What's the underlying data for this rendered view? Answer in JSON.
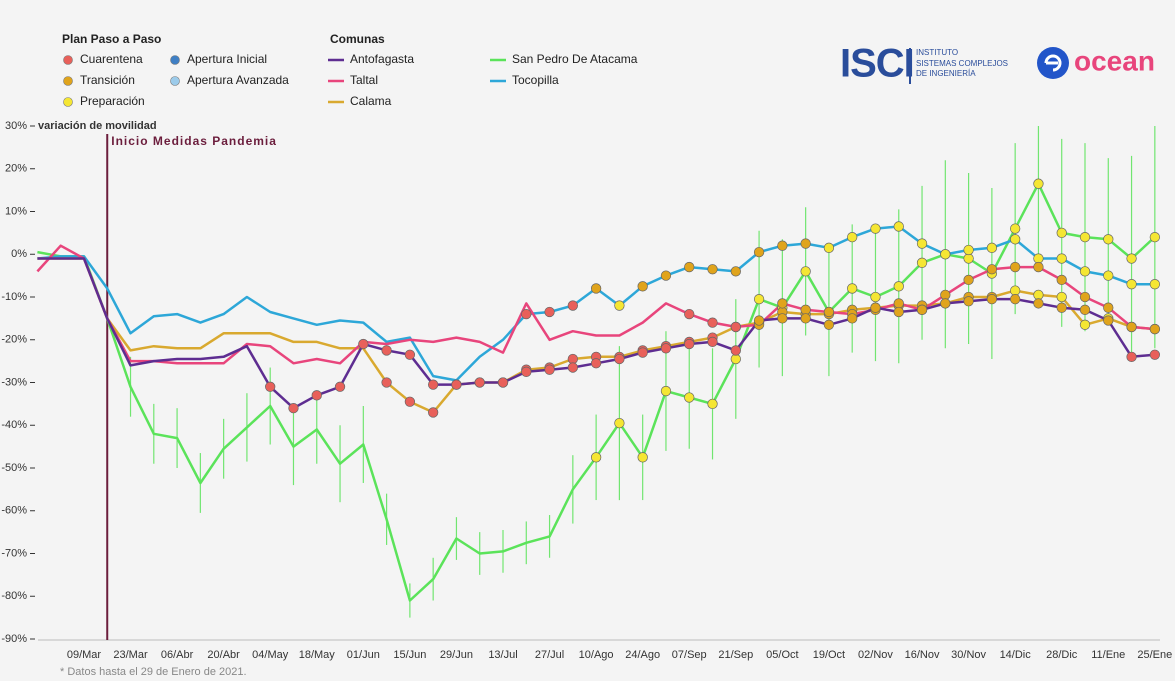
{
  "chart_data": {
    "type": "line",
    "y_label": "variación de movilidad",
    "event_label": "Inicio Medidas Pandemia",
    "phase_legend_title": "Plan Paso a Paso",
    "series_legend_title": "Comunas",
    "phases": [
      {
        "name": "Cuarentena",
        "color": "#e8605a"
      },
      {
        "name": "Transición",
        "color": "#e0a41c"
      },
      {
        "name": "Preparación",
        "color": "#f5e633"
      },
      {
        "name": "Apertura Inicial",
        "color": "#3f7fc4"
      },
      {
        "name": "Apertura Avanzada",
        "color": "#9ccbea"
      }
    ],
    "categories": [
      null,
      null,
      "09/Mar",
      null,
      "23/Mar",
      null,
      "06/Abr",
      null,
      "20/Abr",
      null,
      "04/May",
      null,
      "18/May",
      null,
      "01/Jun",
      null,
      "15/Jun",
      null,
      "29/Jun",
      null,
      "13/Jul",
      null,
      "27/Jul",
      null,
      "10/Ago",
      null,
      "24/Ago",
      null,
      "07/Sep",
      null,
      "21/Sep",
      null,
      "05/Oct",
      null,
      "19/Oct",
      null,
      "02/Nov",
      null,
      "16/Nov",
      null,
      "30/Nov",
      null,
      "14/Dic",
      null,
      "28/Dic",
      null,
      "11/Ene",
      null,
      "25/Ene"
    ],
    "series": [
      {
        "name": "Antofagasta",
        "color": "#5e2d91",
        "values": [
          -1,
          -1,
          -1,
          -15,
          -26,
          -25,
          -24.5,
          -24.5,
          -24,
          -21.5,
          -31,
          -36,
          -33,
          -31,
          -21,
          -22.5,
          -23.5,
          -30.5,
          -30.5,
          -30,
          -30,
          -27.5,
          -27,
          -26.5,
          -25.5,
          -24.5,
          -23,
          -22,
          -21,
          -20.5,
          -22.5,
          -15.5,
          -15,
          -15,
          -16.5,
          -15,
          -12.5,
          -13.5,
          -13,
          -11.5,
          -11,
          -10.5,
          -10.5,
          -11.5,
          -12.5,
          -13,
          -15.5,
          -24,
          -23.5
        ],
        "phases": [
          null,
          null,
          null,
          null,
          null,
          null,
          null,
          null,
          null,
          null,
          0,
          0,
          0,
          0,
          0,
          0,
          0,
          0,
          0,
          0,
          0,
          0,
          0,
          0,
          0,
          0,
          0,
          0,
          0,
          0,
          0,
          1,
          1,
          1,
          1,
          1,
          1,
          1,
          1,
          1,
          1,
          1,
          1,
          1,
          1,
          1,
          1,
          0,
          0
        ]
      },
      {
        "name": "Taltal",
        "color": "#e8457c",
        "values": [
          -4,
          2,
          -1,
          -15,
          -25,
          -25,
          -25.5,
          -25.5,
          -25.5,
          -21,
          -21.5,
          -25.5,
          -24.5,
          -25.5,
          -20.5,
          -21,
          -20,
          -20.5,
          -19.5,
          -20.5,
          -23,
          -11.5,
          -20,
          -18,
          -19,
          -19,
          -16,
          -11.5,
          -14,
          -16,
          -17,
          -16.5,
          -11.5,
          -13,
          -13.5,
          -14,
          -13,
          -11.5,
          -13,
          -9.5,
          -6,
          -3.5,
          -3,
          -3,
          -6,
          -10,
          -12.5,
          -17,
          -17.5
        ],
        "phases": [
          null,
          null,
          null,
          null,
          null,
          null,
          null,
          null,
          null,
          null,
          null,
          null,
          null,
          null,
          null,
          null,
          null,
          null,
          null,
          null,
          null,
          null,
          null,
          null,
          null,
          null,
          null,
          null,
          0,
          0,
          0,
          1,
          1,
          1,
          1,
          1,
          1,
          1,
          1,
          1,
          1,
          1,
          1,
          1,
          1,
          1,
          1,
          1,
          1
        ]
      },
      {
        "name": "Calama",
        "color": "#d9a92f",
        "values": [
          -1,
          -1,
          -1,
          -15,
          -22.5,
          -21.5,
          -22,
          -22,
          -18.5,
          -18.5,
          -18.5,
          -20.5,
          -20.5,
          -22,
          -22,
          -30,
          -34.5,
          -37,
          -30.5,
          -30,
          -30,
          -27,
          -26.5,
          -24.5,
          -24,
          -24,
          -22.5,
          -21.5,
          -20.5,
          -19.5,
          -17,
          -16,
          -13.5,
          -14,
          -14,
          -13,
          -12.5,
          -12,
          -12,
          -11.5,
          -10,
          -10,
          -8.5,
          -9.5,
          -10,
          -16.5,
          -15,
          -17,
          -17.5
        ],
        "phases": [
          null,
          null,
          null,
          null,
          null,
          null,
          null,
          null,
          null,
          null,
          null,
          null,
          null,
          null,
          null,
          0,
          0,
          0,
          0,
          0,
          0,
          0,
          0,
          0,
          0,
          0,
          0,
          0,
          0,
          0,
          1,
          1,
          1,
          1,
          1,
          1,
          1,
          1,
          1,
          1,
          1,
          1,
          2,
          2,
          2,
          2,
          2,
          2,
          2
        ]
      },
      {
        "name": "San Pedro De Atacama",
        "color": "#5be35a",
        "values": [
          0.5,
          -0.5,
          -0.5,
          -15,
          -31,
          -42,
          -43,
          -53.5,
          -45.5,
          -40.5,
          -35.5,
          -45,
          -41,
          -49,
          -44.5,
          -62,
          -81,
          -76,
          -66.5,
          -70,
          -69.5,
          -67.5,
          -66,
          -55,
          -47.5,
          -39.5,
          -47.5,
          -32,
          -33.5,
          -35,
          -24.5,
          -10.5,
          -12.5,
          -4,
          -13.5,
          -8,
          -10,
          -7.5,
          -2,
          0,
          -1,
          -4.5,
          6,
          16.5,
          5,
          4,
          3.5,
          -1,
          4
        ],
        "errors": [
          0,
          0,
          0,
          0,
          7,
          7,
          7,
          7,
          7,
          8,
          9,
          9,
          8,
          9,
          9,
          6,
          4,
          5,
          5,
          5,
          5,
          5,
          5,
          8,
          10,
          18,
          10,
          14,
          12,
          13,
          14,
          16,
          16,
          15,
          15,
          15,
          15,
          18,
          18,
          22,
          20,
          20,
          20,
          18,
          22,
          22,
          19,
          24,
          26
        ],
        "phases": [
          null,
          null,
          null,
          null,
          null,
          null,
          null,
          null,
          null,
          null,
          null,
          null,
          null,
          null,
          null,
          null,
          null,
          null,
          null,
          null,
          null,
          null,
          null,
          null,
          2,
          2,
          2,
          2,
          2,
          2,
          2,
          2,
          2,
          2,
          2,
          2,
          2,
          2,
          2,
          2,
          2,
          2,
          2,
          2,
          2,
          2,
          2,
          2,
          2
        ]
      },
      {
        "name": "Tocopilla",
        "color": "#2da7d8",
        "values": [
          -1,
          -0.5,
          -0.5,
          -8,
          -18.5,
          -14.5,
          -14,
          -16,
          -14,
          -10,
          -13.5,
          -15,
          -16.5,
          -15.5,
          -16,
          -20.5,
          -19.5,
          -28.5,
          -29.5,
          -24,
          -20,
          -14,
          -13.5,
          -12,
          -8,
          -12,
          -7.5,
          -5,
          -3,
          -3.5,
          -4,
          0.5,
          2,
          2.5,
          1.5,
          4,
          6,
          6.5,
          2.5,
          0,
          1,
          1.5,
          3.5,
          -1,
          -1,
          -4,
          -5,
          -7,
          -7
        ],
        "phases": [
          null,
          null,
          null,
          null,
          null,
          null,
          null,
          null,
          null,
          null,
          null,
          null,
          null,
          null,
          null,
          null,
          null,
          null,
          null,
          null,
          null,
          0,
          0,
          0,
          1,
          2,
          1,
          1,
          1,
          1,
          1,
          1,
          1,
          1,
          2,
          2,
          2,
          2,
          2,
          2,
          2,
          2,
          2,
          2,
          2,
          2,
          2,
          2,
          2
        ]
      }
    ],
    "ylim": [
      -90,
      30
    ],
    "yticks": [
      {
        "value": -90,
        "label": "-90%"
      },
      {
        "value": -80,
        "label": "-80%"
      },
      {
        "value": -70,
        "label": "-70%"
      },
      {
        "value": -60,
        "label": "-60%"
      },
      {
        "value": -50,
        "label": "-50%"
      },
      {
        "value": -40,
        "label": "-40%"
      },
      {
        "value": -30,
        "label": "-30%"
      },
      {
        "value": -20,
        "label": "-20%"
      },
      {
        "value": -10,
        "label": "-10%"
      },
      {
        "value": 0,
        "label": "0%"
      },
      {
        "value": 10,
        "label": "10%"
      },
      {
        "value": 20,
        "label": "20%"
      },
      {
        "value": 30,
        "label": "30%"
      }
    ],
    "grid": false
  },
  "footnote": "* Datos hasta el 29 de Enero de 2021.",
  "logos": {
    "isci": "ISCI",
    "isci_line1": "INSTITUTO",
    "isci_line2": "SISTEMAS COMPLEJOS",
    "isci_line3": "DE INGENIERÍA",
    "ocean": "ocean"
  }
}
